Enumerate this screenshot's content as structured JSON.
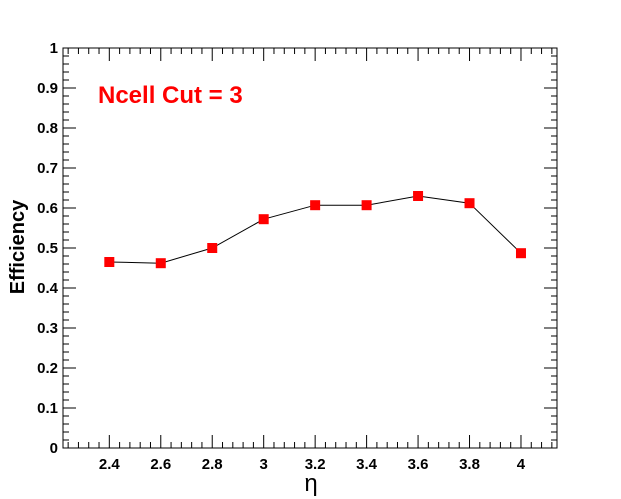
{
  "chart_data": {
    "type": "line",
    "x": [
      2.4,
      2.6,
      2.8,
      3.0,
      3.2,
      3.4,
      3.6,
      3.8,
      4.0
    ],
    "series": [
      {
        "values": [
          0.465,
          0.462,
          0.5,
          0.572,
          0.607,
          0.607,
          0.63,
          0.612,
          0.487
        ],
        "color": "#ff0000",
        "line_color": "#000000",
        "marker": "square"
      }
    ],
    "xlabel": "η",
    "ylabel": "Efficiency",
    "xlim": [
      2.22,
      4.14
    ],
    "ylim": [
      0,
      1
    ],
    "x_ticks": [
      "2.4",
      "2.6",
      "2.8",
      "3",
      "3.2",
      "3.4",
      "3.6",
      "3.8",
      "4"
    ],
    "y_ticks": [
      "0",
      "0.1",
      "0.2",
      "0.3",
      "0.4",
      "0.5",
      "0.6",
      "0.7",
      "0.8",
      "0.9",
      "1"
    ],
    "annotation": {
      "text": "Ncell Cut = 3",
      "color": "#ff0000"
    },
    "grid": false,
    "legend": "none"
  }
}
